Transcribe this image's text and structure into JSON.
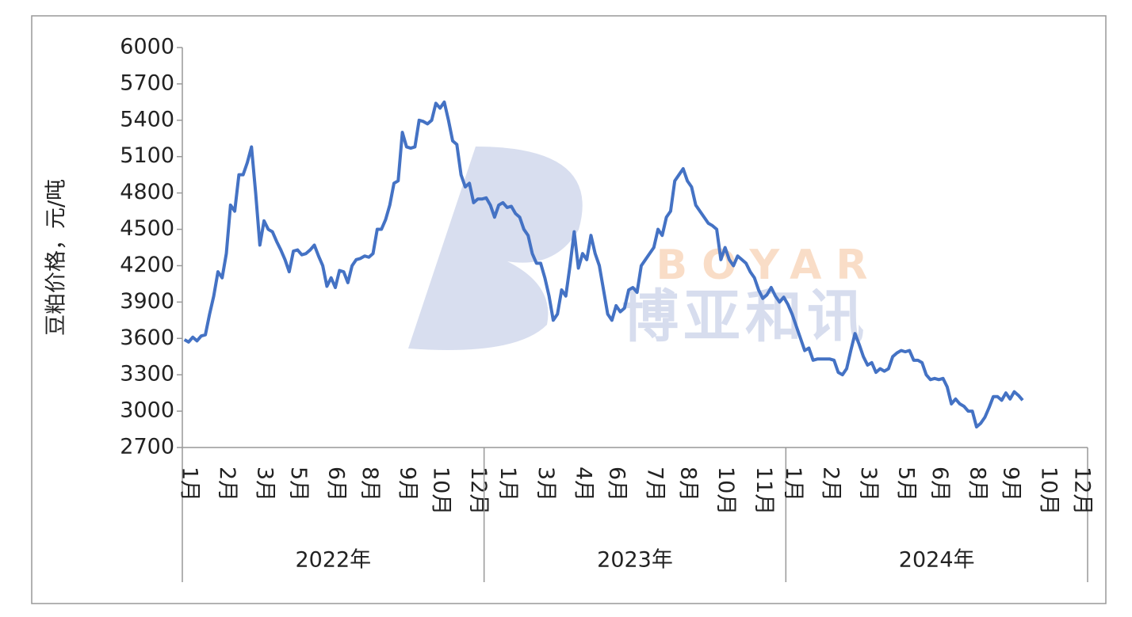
{
  "chart_data": {
    "type": "line",
    "y_label": "豆粕价格，元/吨",
    "watermark": {
      "latin": "BOYAR",
      "chinese": "博亚和讯"
    },
    "ylim": [
      2700,
      6000
    ],
    "yticks": [
      2700,
      3000,
      3300,
      3600,
      3900,
      4200,
      4500,
      4800,
      5100,
      5400,
      5700,
      6000
    ],
    "groups": [
      {
        "label": "2022年",
        "categories": [
          null,
          "1月",
          null,
          null,
          null,
          null,
          null,
          null,
          null,
          null,
          "2月",
          null,
          null,
          null,
          null,
          null,
          null,
          null,
          null,
          "3月",
          null,
          null,
          null,
          null,
          null,
          null,
          null,
          "5月",
          null,
          null,
          null,
          null,
          null,
          null,
          null,
          null,
          "6月",
          null,
          null,
          null,
          null,
          null,
          null,
          null,
          "8月",
          null,
          null,
          null,
          null,
          null,
          null,
          null,
          null,
          "9月",
          null,
          null,
          null,
          null,
          null,
          null,
          null,
          "10月",
          null,
          null,
          null,
          null,
          null,
          null,
          null,
          null,
          "12月",
          null
        ]
      },
      {
        "label": "2023年",
        "categories": [
          null,
          null,
          null,
          null,
          null,
          "1月",
          null,
          null,
          null,
          null,
          null,
          null,
          null,
          null,
          "3月",
          null,
          null,
          null,
          null,
          null,
          null,
          null,
          null,
          "4月",
          null,
          null,
          null,
          null,
          null,
          null,
          null,
          "6月",
          null,
          null,
          null,
          null,
          null,
          null,
          null,
          null,
          "7月",
          null,
          null,
          null,
          null,
          null,
          null,
          null,
          "8月",
          null,
          null,
          null,
          null,
          null,
          null,
          null,
          null,
          "10月",
          null,
          null,
          null,
          null,
          null,
          null,
          null,
          null,
          "11月",
          null,
          null,
          null,
          null,
          null
        ]
      },
      {
        "label": "2024年",
        "categories": [
          null,
          "1月",
          null,
          null,
          null,
          null,
          null,
          null,
          null,
          null,
          "2月",
          null,
          null,
          null,
          null,
          null,
          null,
          null,
          null,
          "3月",
          null,
          null,
          null,
          null,
          null,
          null,
          null,
          null,
          "5月",
          null,
          null,
          null,
          null,
          null,
          null,
          null,
          "6月",
          null,
          null,
          null,
          null,
          null,
          null,
          null,
          null,
          "8月",
          null,
          null,
          null,
          null,
          null,
          null,
          null,
          "9月",
          null,
          null,
          null,
          null,
          null,
          null,
          null,
          null,
          "10月",
          null,
          null,
          null,
          null,
          null,
          null,
          null,
          "12月",
          null
        ]
      }
    ],
    "series": [
      {
        "name": "豆粕价格",
        "color": "#4472c4",
        "values": [
          3590,
          3570,
          3610,
          3580,
          3620,
          3630,
          3800,
          3950,
          4150,
          4100,
          4300,
          4700,
          4650,
          4950,
          4950,
          5050,
          5180,
          4800,
          4370,
          4570,
          4500,
          4480,
          4400,
          4330,
          4250,
          4150,
          4320,
          4330,
          4290,
          4300,
          4330,
          4370,
          4280,
          4200,
          4030,
          4100,
          4020,
          4160,
          4150,
          4060,
          4200,
          4250,
          4260,
          4280,
          4270,
          4300,
          4500,
          4500,
          4580,
          4700,
          4880,
          4900,
          5300,
          5180,
          5170,
          5180,
          5400,
          5390,
          5370,
          5400,
          5540,
          5500,
          5550,
          5400,
          5230,
          5200,
          4950,
          4850,
          4880,
          4720,
          4750,
          4750,
          4760,
          4700,
          4600,
          4700,
          4720,
          4680,
          4690,
          4630,
          4600,
          4500,
          4450,
          4300,
          4220,
          4220,
          4100,
          3950,
          3750,
          3800,
          4000,
          3950,
          4200,
          4480,
          4180,
          4300,
          4250,
          4450,
          4300,
          4200,
          4000,
          3800,
          3750,
          3870,
          3820,
          3850,
          4000,
          4020,
          3980,
          4200,
          4250,
          4300,
          4350,
          4500,
          4450,
          4600,
          4650,
          4900,
          4950,
          5000,
          4900,
          4850,
          4700,
          4650,
          4600,
          4550,
          4530,
          4500,
          4250,
          4350,
          4250,
          4200,
          4280,
          4250,
          4220,
          4150,
          4100,
          4000,
          3930,
          3960,
          4020,
          3950,
          3900,
          3940,
          3880,
          3800,
          3700,
          3600,
          3500,
          3520,
          3420,
          3430,
          3430,
          3430,
          3430,
          3420,
          3320,
          3300,
          3350,
          3500,
          3640,
          3550,
          3450,
          3380,
          3400,
          3320,
          3350,
          3330,
          3350,
          3450,
          3480,
          3500,
          3490,
          3500,
          3420,
          3420,
          3400,
          3300,
          3260,
          3270,
          3260,
          3270,
          3200,
          3060,
          3100,
          3060,
          3040,
          3000,
          3000,
          2870,
          2900,
          2950,
          3030,
          3120,
          3120,
          3090,
          3150,
          3100,
          3160,
          3130,
          3090,
          null,
          null,
          null,
          null,
          null,
          null,
          null,
          null,
          null,
          null,
          null,
          null,
          null,
          null,
          null
        ]
      }
    ]
  }
}
